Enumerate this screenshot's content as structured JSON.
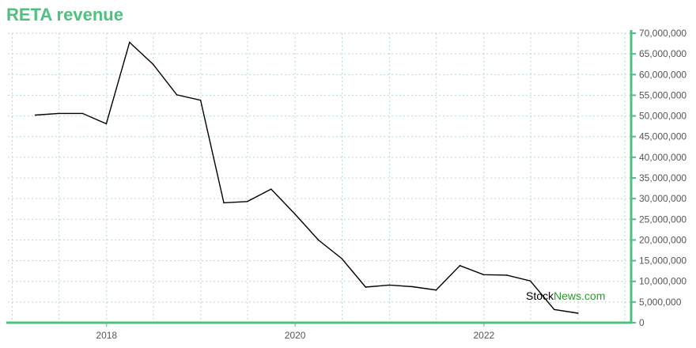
{
  "title": "RETA revenue",
  "colors": {
    "accent": "#4ec07f",
    "line": "#000000",
    "grid": "#b9d9c9",
    "tick_text": "#555555",
    "watermark_news": "#2a9d2a"
  },
  "watermark": {
    "part1": "Stock",
    "part2": "News.com"
  },
  "chart_data": {
    "type": "line",
    "title": "RETA revenue",
    "xlabel": "",
    "ylabel": "",
    "x_ticks": [
      "2018",
      "2020",
      "2022"
    ],
    "y_ticks": [
      "0",
      "5,000,000",
      "10,000,000",
      "15,000,000",
      "20,000,000",
      "25,000,000",
      "30,000,000",
      "35,000,000",
      "40,000,000",
      "45,000,000",
      "50,000,000",
      "55,000,000",
      "60,000,000",
      "65,000,000",
      "70,000,000"
    ],
    "ylim": [
      0,
      70000000
    ],
    "xlim": [
      "2016-12-15",
      "2023-07-25"
    ],
    "grid": true,
    "y_axis_side": "right",
    "series": [
      {
        "values": [
          {
            "x": "2017-03-31",
            "y": 50200000
          },
          {
            "x": "2017-06-30",
            "y": 50600000
          },
          {
            "x": "2017-09-30",
            "y": 50600000
          },
          {
            "x": "2017-12-31",
            "y": 48100000
          },
          {
            "x": "2018-03-31",
            "y": 67800000
          },
          {
            "x": "2018-06-30",
            "y": 62500000
          },
          {
            "x": "2018-09-30",
            "y": 55100000
          },
          {
            "x": "2018-12-31",
            "y": 53800000
          },
          {
            "x": "2019-03-31",
            "y": 29000000
          },
          {
            "x": "2019-06-30",
            "y": 29300000
          },
          {
            "x": "2019-09-30",
            "y": 32300000
          },
          {
            "x": "2019-12-31",
            "y": 26300000
          },
          {
            "x": "2020-03-31",
            "y": 20000000
          },
          {
            "x": "2020-06-30",
            "y": 15500000
          },
          {
            "x": "2020-09-30",
            "y": 8600000
          },
          {
            "x": "2020-12-31",
            "y": 9100000
          },
          {
            "x": "2021-03-31",
            "y": 8700000
          },
          {
            "x": "2021-06-30",
            "y": 7900000
          },
          {
            "x": "2021-09-30",
            "y": 13800000
          },
          {
            "x": "2021-12-31",
            "y": 11600000
          },
          {
            "x": "2022-03-31",
            "y": 11500000
          },
          {
            "x": "2022-06-30",
            "y": 10100000
          },
          {
            "x": "2022-09-30",
            "y": 3200000
          },
          {
            "x": "2022-12-31",
            "y": 2300000
          }
        ]
      }
    ]
  }
}
